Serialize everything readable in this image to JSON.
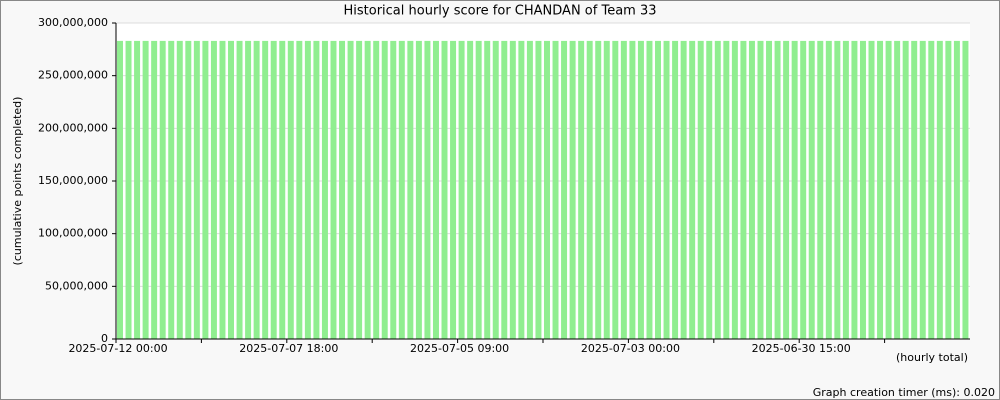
{
  "chart_data": {
    "type": "bar",
    "title": "Historical hourly score for CHANDAN of Team 33",
    "x_label": "(hourly total)",
    "y_label": "(cumulative points completed)",
    "annotation": "Graph creation timer (ms): 0.020",
    "color": "#90ee90",
    "grid": true,
    "categories": [
      "2025-07-12 00:00",
      null,
      null,
      null,
      null,
      null,
      null,
      null,
      null,
      null,
      null,
      null,
      null,
      null,
      null,
      null,
      null,
      null,
      null,
      null,
      "2025-07-07 18:00",
      null,
      null,
      null,
      null,
      null,
      null,
      null,
      null,
      null,
      null,
      null,
      null,
      null,
      null,
      null,
      null,
      null,
      null,
      null,
      "2025-07-05 09:00",
      null,
      null,
      null,
      null,
      null,
      null,
      null,
      null,
      null,
      null,
      null,
      null,
      null,
      null,
      null,
      null,
      null,
      null,
      null,
      "2025-07-03 00:00",
      null,
      null,
      null,
      null,
      null,
      null,
      null,
      null,
      null,
      null,
      null,
      null,
      null,
      null,
      null,
      null,
      null,
      null,
      null,
      "2025-06-30 15:00",
      null,
      null,
      null,
      null,
      null,
      null,
      null,
      null,
      null,
      null,
      null,
      null,
      null,
      null,
      null,
      null,
      null,
      null,
      null
    ],
    "values": [
      283000000,
      283000000,
      283000000,
      283000000,
      283000000,
      283000000,
      283000000,
      283000000,
      283000000,
      283000000,
      283000000,
      283000000,
      283000000,
      283000000,
      283000000,
      283000000,
      283000000,
      283000000,
      283000000,
      283000000,
      283000000,
      283000000,
      283000000,
      283000000,
      283000000,
      283000000,
      283000000,
      283000000,
      283000000,
      283000000,
      283000000,
      283000000,
      283000000,
      283000000,
      283000000,
      283000000,
      283000000,
      283000000,
      283000000,
      283000000,
      283000000,
      283000000,
      283000000,
      283000000,
      283000000,
      283000000,
      283000000,
      283000000,
      283000000,
      283000000,
      283000000,
      283000000,
      283000000,
      283000000,
      283000000,
      283000000,
      283000000,
      283000000,
      283000000,
      283000000,
      283000000,
      283000000,
      283000000,
      283000000,
      283000000,
      283000000,
      283000000,
      283000000,
      283000000,
      283000000,
      283000000,
      283000000,
      283000000,
      283000000,
      283000000,
      283000000,
      283000000,
      283000000,
      283000000,
      283000000,
      283000000,
      283000000,
      283000000,
      283000000,
      283000000,
      283000000,
      283000000,
      283000000,
      283000000,
      283000000,
      283000000,
      283000000,
      283000000,
      283000000,
      283000000,
      283000000,
      283000000,
      283000000,
      283000000,
      283000000
    ],
    "ylim": [
      0,
      300000000
    ],
    "yticks": [
      0,
      {
        "value": 50000000,
        "label": "50,000,000"
      },
      {
        "value": 100000000,
        "label": "100,000,000"
      },
      {
        "value": 150000000,
        "label": "150,000,000"
      },
      {
        "value": 200000000,
        "label": "200,000,000"
      },
      {
        "value": 250000000,
        "label": "250,000,000"
      },
      {
        "value": 300000000,
        "label": "300,000,000"
      }
    ]
  }
}
